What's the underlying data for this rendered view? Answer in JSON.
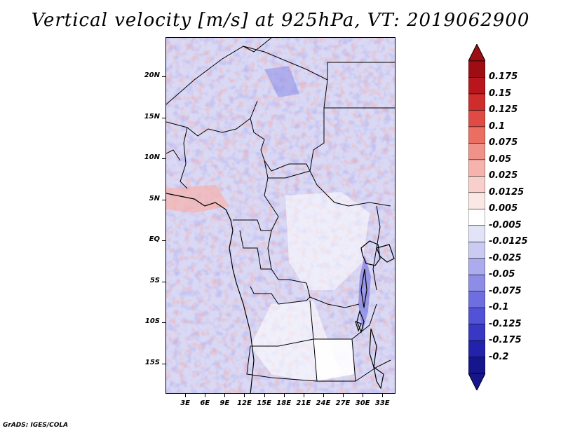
{
  "title": "Vertical velocity [m/s] at 925hPa, VT: 2019062900",
  "credit": "GrADS: IGES/COLA",
  "map": {
    "variable": "Vertical velocity",
    "units": "m/s",
    "level": "925hPa",
    "valid_time": "2019062900",
    "lat_range": [
      -20,
      25
    ],
    "lon_range": [
      0,
      35
    ],
    "lat_labels": [
      {
        "lat": 20,
        "text": "20N"
      },
      {
        "lat": 15,
        "text": "15N"
      },
      {
        "lat": 10,
        "text": "10N"
      },
      {
        "lat": 5,
        "text": "5N"
      },
      {
        "lat": 0,
        "text": "EQ"
      },
      {
        "lat": -5,
        "text": "5S"
      },
      {
        "lat": -10,
        "text": "10S"
      },
      {
        "lat": -15,
        "text": "15S"
      }
    ],
    "lon_labels": [
      {
        "lon": 3,
        "text": "3E"
      },
      {
        "lon": 6,
        "text": "6E"
      },
      {
        "lon": 9,
        "text": "9E"
      },
      {
        "lon": 12,
        "text": "12E"
      },
      {
        "lon": 15,
        "text": "15E"
      },
      {
        "lon": 18,
        "text": "18E"
      },
      {
        "lon": 21,
        "text": "21E"
      },
      {
        "lon": 24,
        "text": "24E"
      },
      {
        "lon": 27,
        "text": "27E"
      },
      {
        "lon": 30,
        "text": "30E"
      },
      {
        "lon": 33,
        "text": "33E"
      }
    ]
  },
  "colorbar": {
    "labels": [
      "0.175",
      "0.15",
      "0.125",
      "0.1",
      "0.075",
      "0.05",
      "0.025",
      "0.0125",
      "0.005",
      "-0.005",
      "-0.0125",
      "-0.025",
      "-0.05",
      "-0.075",
      "-0.1",
      "-0.125",
      "-0.175",
      "-0.2"
    ],
    "colors": [
      "#9e0d14",
      "#b8161c",
      "#cf2c2c",
      "#e04a44",
      "#ea6f62",
      "#f1928a",
      "#f6b2ac",
      "#f9cfcb",
      "#fbe7e4",
      "#ffffff",
      "#e3e3f8",
      "#cacaf3",
      "#ababee",
      "#8d8de8",
      "#6e6edf",
      "#5252d6",
      "#3838c4",
      "#2222aa",
      "#16168c"
    ]
  }
}
